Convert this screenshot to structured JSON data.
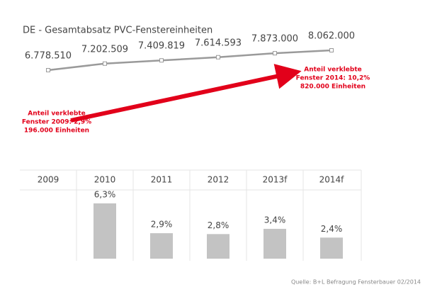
{
  "chart_data": [
    {
      "type": "line",
      "title": "DE - Gesamtabsatz PVC-Fenstereinheiten",
      "values": [
        6778510,
        7202509,
        7409819,
        7614593,
        7873000,
        8062000
      ],
      "value_labels": [
        "6.778.510",
        "7.202.509",
        "7.409.819",
        "7.614.593",
        "7.873.000",
        "8.062.000"
      ],
      "color": "#9a9a9a",
      "annotation_color": "#e2001a",
      "annotations": [
        {
          "text": [
            "Anteil verklebte",
            "Fenster 2009: 2,9%",
            "196.000 Einheiten"
          ]
        },
        {
          "text": [
            "Anteil verklebte",
            "Fenster 2014: 10,2%",
            "820.000 Einheiten"
          ]
        }
      ]
    },
    {
      "type": "bar",
      "categories": [
        "2009",
        "2010",
        "2011",
        "2012",
        "2013f",
        "2014f"
      ],
      "values": [
        null,
        6.3,
        2.9,
        2.8,
        3.4,
        2.4
      ],
      "value_labels": [
        null,
        "6,3%",
        "2,9%",
        "2,8%",
        "3,4%",
        "2,4%"
      ],
      "color": "#c3c3c3",
      "source": "Quelle: B+L Befragung Fensterbauer 02/2014"
    }
  ]
}
